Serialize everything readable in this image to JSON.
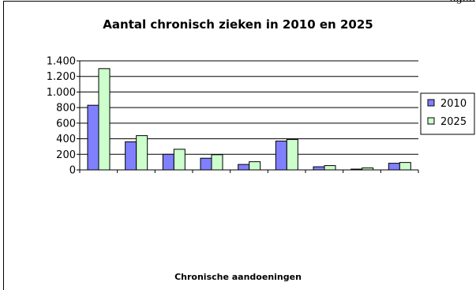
{
  "page_fragment": "ngen",
  "chart_data": {
    "type": "bar",
    "title": "Aantal chronisch zieken in 2010 en 2025",
    "xlabel": "Chronische aandoeningen",
    "ylabel": "",
    "ylim": [
      0,
      1400
    ],
    "ytick_values": [
      0,
      200,
      400,
      600,
      800,
      1000,
      1200,
      1400
    ],
    "ytick_labels": [
      "0",
      "200",
      "400",
      "600",
      "800",
      "1.000",
      "1.200",
      "1.400"
    ],
    "categories": [
      "",
      "",
      "",
      "",
      "",
      "",
      "",
      "",
      ""
    ],
    "grid": true,
    "legend_position": "right",
    "series": [
      {
        "name": "2010",
        "color": "#8080ff",
        "values": [
          830,
          360,
          200,
          150,
          70,
          370,
          40,
          10,
          85
        ]
      },
      {
        "name": "2025",
        "color": "#ccffcc",
        "values": [
          1300,
          440,
          265,
          195,
          105,
          390,
          55,
          25,
          95
        ]
      }
    ]
  }
}
